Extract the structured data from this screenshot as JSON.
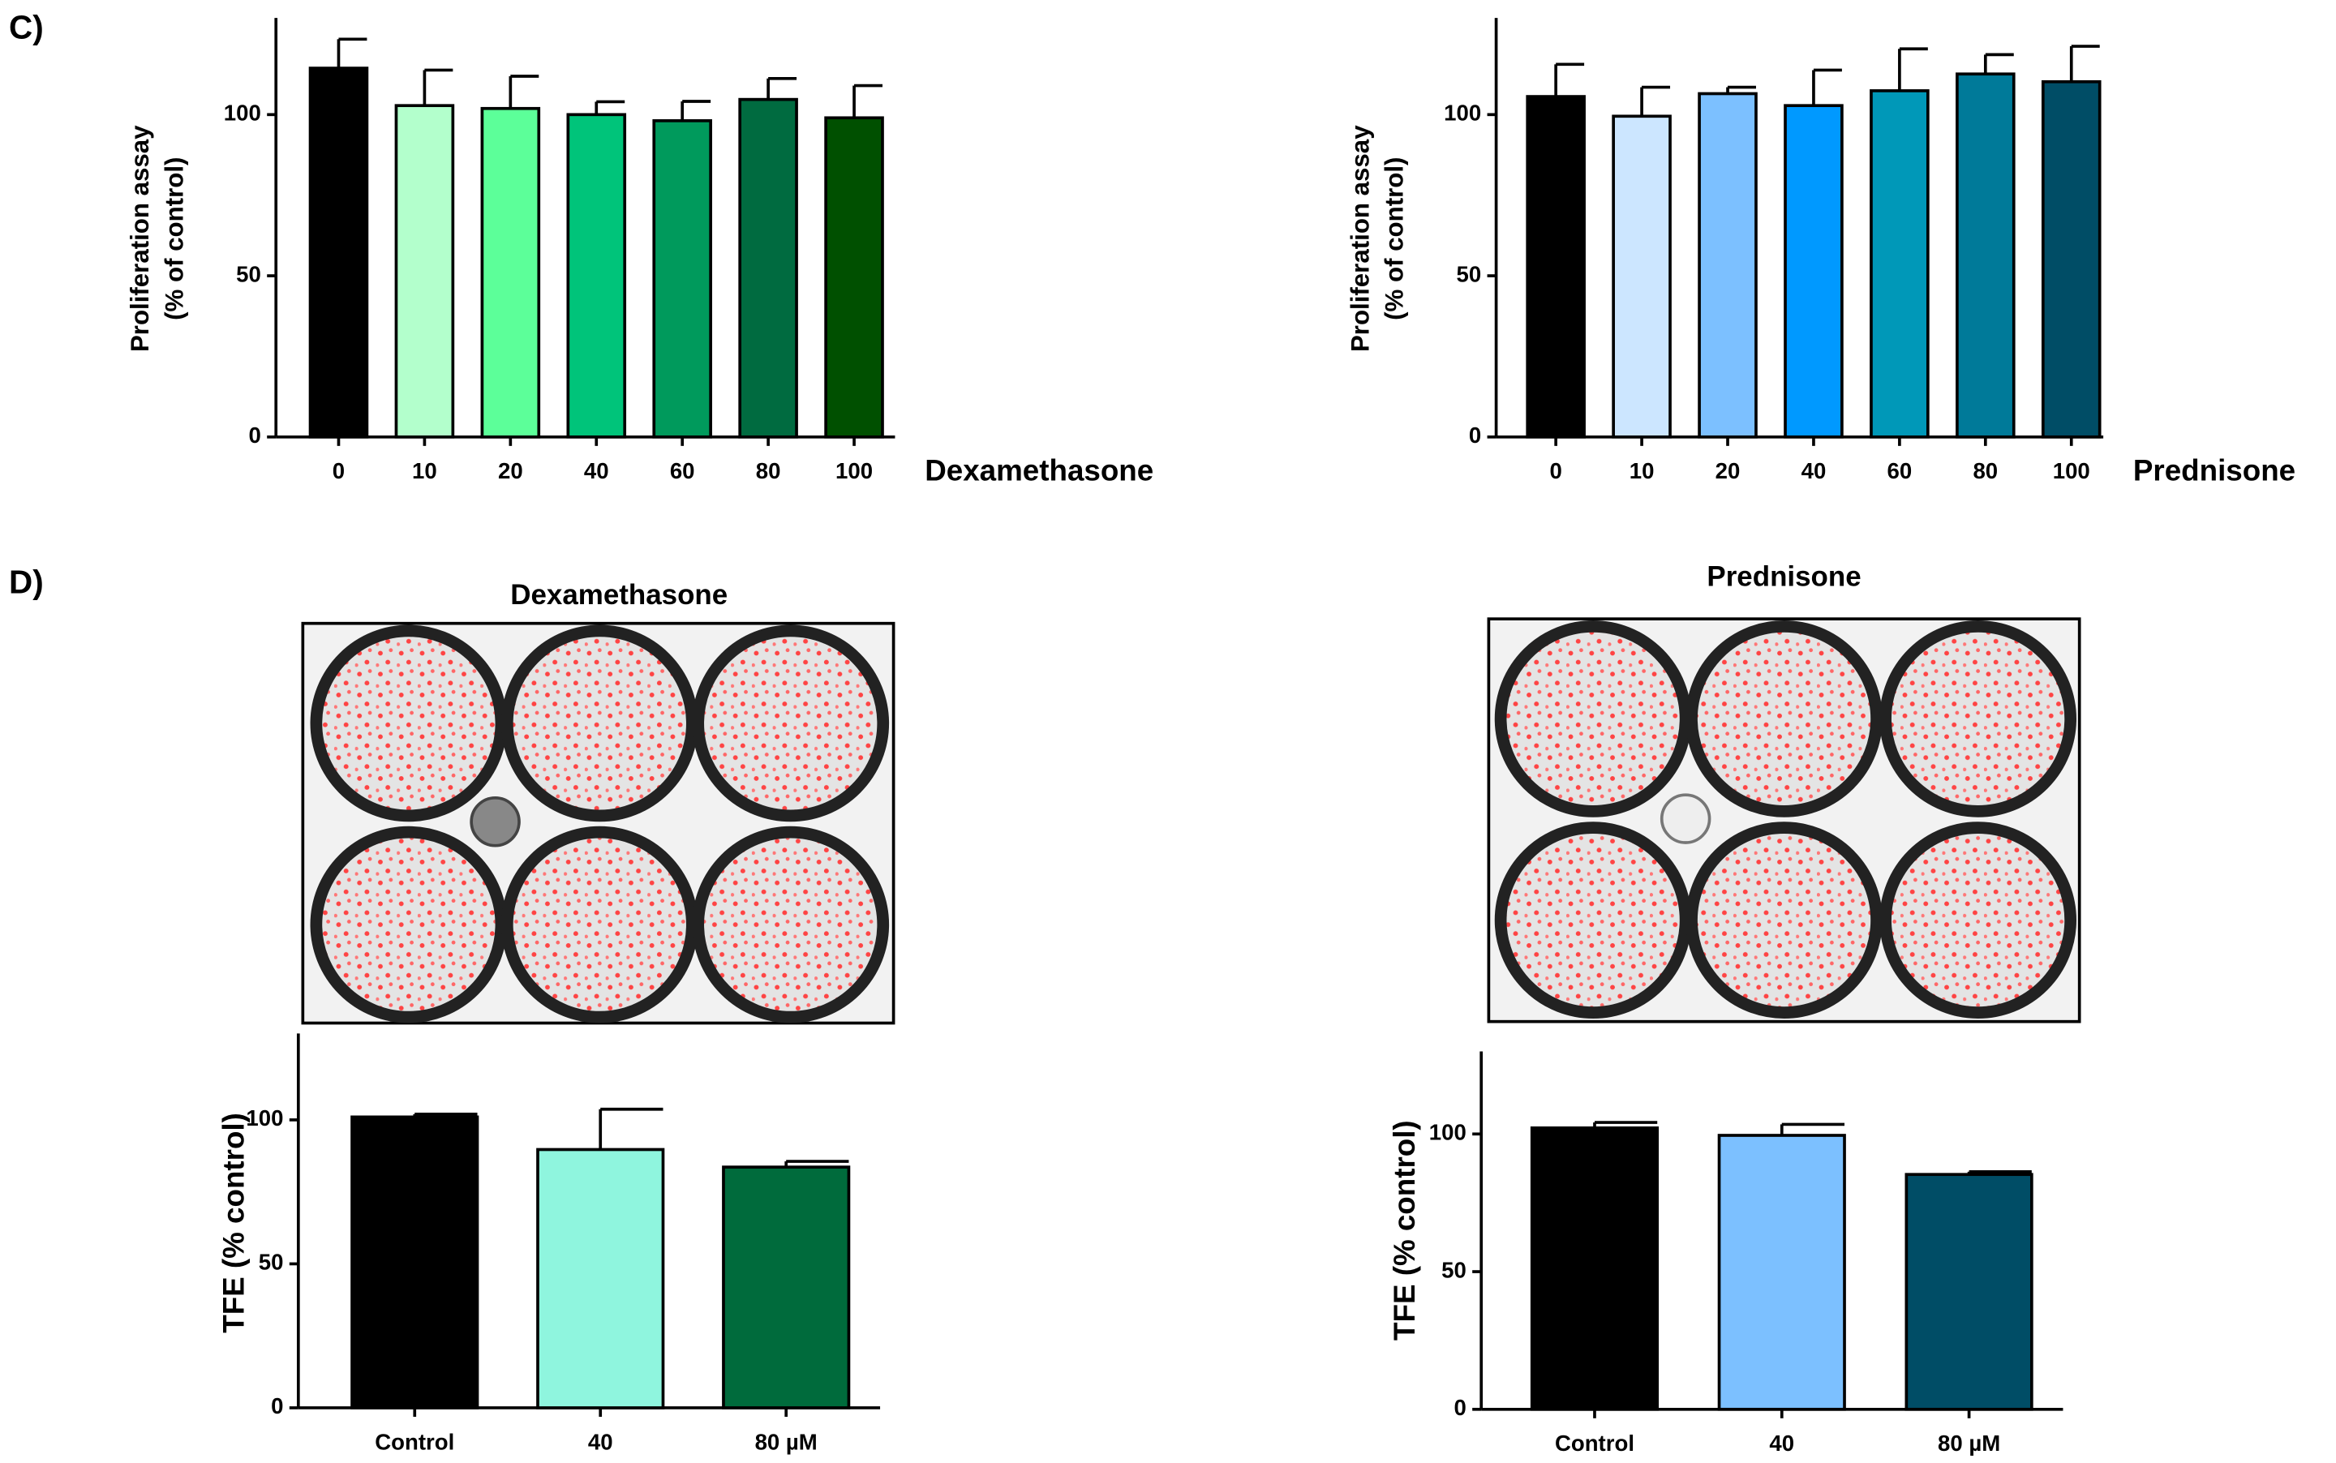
{
  "panel_labels": [
    "C)",
    "D)"
  ],
  "chart_data": [
    {
      "type": "bar",
      "xlabel": "Dexamethasone",
      "ylabel": [
        "Proliferation assay",
        "(% of control)"
      ],
      "categories": [
        "0",
        "10",
        "20",
        "40",
        "60",
        "80",
        "100"
      ],
      "values": [
        114.4,
        102.8,
        101.9,
        100,
        98.1,
        104.7,
        99
      ],
      "errors": [
        9,
        11,
        10,
        4,
        6,
        6.5,
        10
      ],
      "colors": [
        "#000000",
        "#b3ffcc",
        "#5cff99",
        "#00c47a",
        "#009a5c",
        "#006b40",
        "#005000"
      ],
      "ylim": [
        0,
        130
      ],
      "yticks": [
        0,
        50,
        100
      ]
    },
    {
      "type": "bar",
      "xlabel": "Prednisone",
      "ylabel": [
        "Proliferation assay",
        "(% of control)"
      ],
      "categories": [
        "0",
        "10",
        "20",
        "40",
        "60",
        "80",
        "100"
      ],
      "values": [
        105.6,
        99.5,
        106.5,
        102.8,
        107.4,
        112.6,
        110.2
      ],
      "errors": [
        10,
        9,
        2,
        11,
        13,
        6,
        11
      ],
      "colors": [
        "#000000",
        "#cce6ff",
        "#7cc0ff",
        "#0099ff",
        "#0098b8",
        "#007a99",
        "#004d66"
      ],
      "ylim": [
        0,
        130
      ],
      "yticks": [
        0,
        50,
        100
      ]
    },
    {
      "type": "bar",
      "title": "Dexamethasone",
      "ylabel": [
        "TFE (% control)"
      ],
      "categories": [
        "Control",
        "40",
        "80  µM"
      ],
      "values": [
        101,
        89.7,
        83.6
      ],
      "errors": [
        1,
        14,
        2
      ],
      "colors": [
        "#000000",
        "#8ff5de",
        "#006b3c"
      ],
      "ylim": [
        0,
        130
      ],
      "yticks": [
        0,
        50,
        100
      ]
    },
    {
      "type": "bar",
      "title": "Prednisone",
      "ylabel": [
        "TFE (% control)"
      ],
      "categories": [
        "Control",
        "40",
        "80 µM"
      ],
      "values": [
        102.2,
        99.5,
        85.3
      ],
      "errors": [
        2,
        4,
        1
      ],
      "colors": [
        "#000000",
        "#7cc0ff",
        "#004d66"
      ],
      "ylim": [
        0,
        130
      ],
      "yticks": [
        0,
        50,
        100
      ]
    }
  ]
}
